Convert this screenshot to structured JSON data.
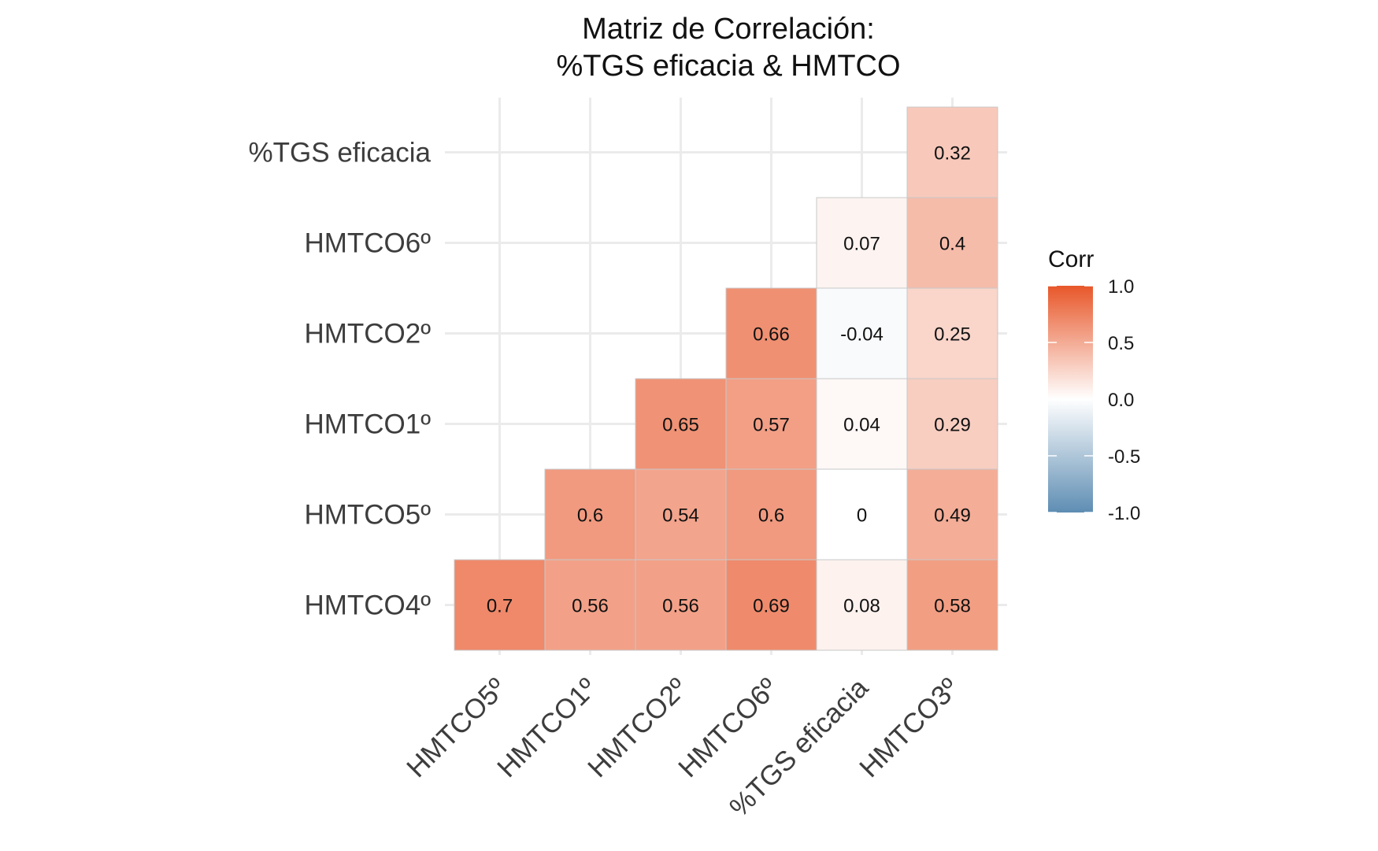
{
  "chart_data": {
    "type": "heatmap",
    "title_lines": [
      "Matriz de Correlación:",
      "%TGS eficacia & HMTCO"
    ],
    "x_categories": [
      "HMTCO5º",
      "HMTCO1º",
      "HMTCO2º",
      "HMTCO6º",
      "%TGS eficacia",
      "HMTCO3º"
    ],
    "y_categories": [
      "HMTCO4º",
      "HMTCO5º",
      "HMTCO1º",
      "HMTCO2º",
      "HMTCO6º",
      "%TGS eficacia"
    ],
    "cells": [
      {
        "x": "HMTCO5º",
        "y": "HMTCO4º",
        "value": 0.7,
        "label": "0.7"
      },
      {
        "x": "HMTCO1º",
        "y": "HMTCO4º",
        "value": 0.56,
        "label": "0.56"
      },
      {
        "x": "HMTCO2º",
        "y": "HMTCO4º",
        "value": 0.56,
        "label": "0.56"
      },
      {
        "x": "HMTCO6º",
        "y": "HMTCO4º",
        "value": 0.69,
        "label": "0.69"
      },
      {
        "x": "%TGS eficacia",
        "y": "HMTCO4º",
        "value": 0.08,
        "label": "0.08"
      },
      {
        "x": "HMTCO3º",
        "y": "HMTCO4º",
        "value": 0.58,
        "label": "0.58"
      },
      {
        "x": "HMTCO1º",
        "y": "HMTCO5º",
        "value": 0.6,
        "label": "0.6"
      },
      {
        "x": "HMTCO2º",
        "y": "HMTCO5º",
        "value": 0.54,
        "label": "0.54"
      },
      {
        "x": "HMTCO6º",
        "y": "HMTCO5º",
        "value": 0.6,
        "label": "0.6"
      },
      {
        "x": "%TGS eficacia",
        "y": "HMTCO5º",
        "value": 0,
        "label": "0"
      },
      {
        "x": "HMTCO3º",
        "y": "HMTCO5º",
        "value": 0.49,
        "label": "0.49"
      },
      {
        "x": "HMTCO2º",
        "y": "HMTCO1º",
        "value": 0.65,
        "label": "0.65"
      },
      {
        "x": "HMTCO6º",
        "y": "HMTCO1º",
        "value": 0.57,
        "label": "0.57"
      },
      {
        "x": "%TGS eficacia",
        "y": "HMTCO1º",
        "value": 0.04,
        "label": "0.04"
      },
      {
        "x": "HMTCO3º",
        "y": "HMTCO1º",
        "value": 0.29,
        "label": "0.29"
      },
      {
        "x": "HMTCO6º",
        "y": "HMTCO2º",
        "value": 0.66,
        "label": "0.66"
      },
      {
        "x": "%TGS eficacia",
        "y": "HMTCO2º",
        "value": -0.04,
        "label": "-0.04"
      },
      {
        "x": "HMTCO3º",
        "y": "HMTCO2º",
        "value": 0.25,
        "label": "0.25"
      },
      {
        "x": "%TGS eficacia",
        "y": "HMTCO6º",
        "value": 0.07,
        "label": "0.07"
      },
      {
        "x": "HMTCO3º",
        "y": "HMTCO6º",
        "value": 0.4,
        "label": "0.4"
      },
      {
        "x": "HMTCO3º",
        "y": "%TGS eficacia",
        "value": 0.32,
        "label": "0.32"
      }
    ],
    "legend": {
      "title": "Corr",
      "ticks": [
        1.0,
        0.5,
        0.0,
        -0.5,
        -1.0
      ],
      "tick_labels": [
        "1.0",
        "0.5",
        "0.0",
        "-0.5",
        "-1.0"
      ],
      "range": [
        -1,
        1
      ],
      "colors": {
        "low": "#5E8DB3",
        "mid": "#FFFFFF",
        "high": "#E8572A"
      },
      "placement": "right"
    },
    "grid": true
  }
}
